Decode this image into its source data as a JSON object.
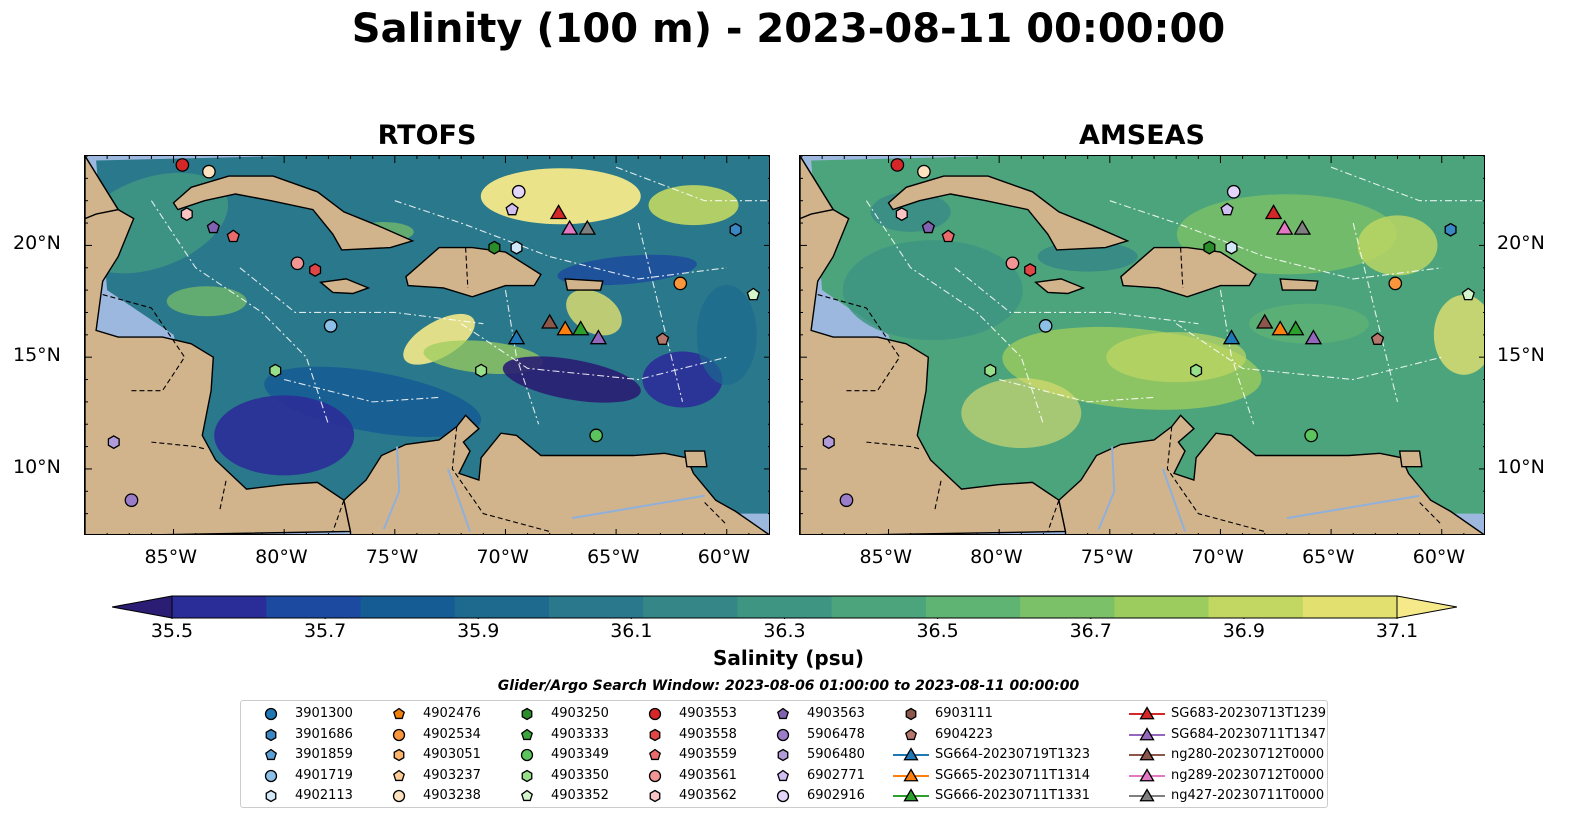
{
  "title": "Salinity (100 m) - 2023-08-11 00:00:00",
  "panels": [
    {
      "name": "RTOFS",
      "style": "rtofs"
    },
    {
      "name": "AMSEAS",
      "style": "amseas"
    }
  ],
  "map_region": {
    "lon_min": -89,
    "lon_max": -58,
    "lat_min": 7,
    "lat_max": 24
  },
  "x_ticks": [
    "85°W",
    "80°W",
    "75°W",
    "70°W",
    "65°W",
    "60°W"
  ],
  "x_tick_values": [
    -85,
    -80,
    -75,
    -70,
    -65,
    -60
  ],
  "y_ticks": [
    "20°N",
    "15°N",
    "10°N"
  ],
  "y_tick_values": [
    20,
    15,
    10
  ],
  "colorbar": {
    "label": "Salinity (psu)",
    "min": 35.4,
    "max": 37.2,
    "step": 0.1,
    "extend": "both",
    "colormap": "haline",
    "ticks": [
      "35.5",
      "35.7",
      "35.9",
      "36.1",
      "36.3",
      "36.5",
      "36.7",
      "36.9",
      "37.1"
    ],
    "tick_values": [
      35.5,
      35.7,
      35.9,
      36.1,
      36.3,
      36.5,
      36.7,
      36.9,
      37.1
    ],
    "colors": [
      "#2a1d73",
      "#2a2d98",
      "#1b4aa0",
      "#155b94",
      "#1d6a8e",
      "#2a788b",
      "#348687",
      "#3e9582",
      "#4ba47c",
      "#5fb373",
      "#7bc167",
      "#9ccc5e",
      "#c1d762",
      "#e2e06f",
      "#f5e98a"
    ]
  },
  "colors": {
    "land": "#d2b48c",
    "shallow_water": "#9db8de"
  },
  "legend": {
    "title": "Glider/Argo Search Window: 2023-08-06 01:00:00 to 2023-08-11 00:00:00",
    "columns": [
      [
        {
          "label": "3901300",
          "marker": "circle",
          "color": "#1f77b4"
        },
        {
          "label": "3901686",
          "marker": "hexagon",
          "color": "#3a87c4"
        },
        {
          "label": "3901859",
          "marker": "pentagon",
          "color": "#5b9fd4"
        },
        {
          "label": "4901719",
          "marker": "circle",
          "color": "#8cc0e6"
        },
        {
          "label": "4902113",
          "marker": "hexagon",
          "color": "#d3e8f7"
        }
      ],
      [
        {
          "label": "4902476",
          "marker": "pentagon",
          "color": "#f07f0b"
        },
        {
          "label": "4902534",
          "marker": "circle",
          "color": "#f9953a"
        },
        {
          "label": "4903051",
          "marker": "hexagon",
          "color": "#fbb46a"
        },
        {
          "label": "4903237",
          "marker": "pentagon",
          "color": "#fdcc96"
        },
        {
          "label": "4903238",
          "marker": "circle",
          "color": "#fde2c0"
        }
      ],
      [
        {
          "label": "4903250",
          "marker": "hexagon",
          "color": "#2a8c2a"
        },
        {
          "label": "4903333",
          "marker": "pentagon",
          "color": "#3ca43c"
        },
        {
          "label": "4903349",
          "marker": "circle",
          "color": "#5cc45c"
        },
        {
          "label": "4903350",
          "marker": "hexagon",
          "color": "#98df8a"
        },
        {
          "label": "4903352",
          "marker": "pentagon",
          "color": "#d4f5cc"
        }
      ],
      [
        {
          "label": "4903553",
          "marker": "circle",
          "color": "#d62728"
        },
        {
          "label": "4903558",
          "marker": "hexagon",
          "color": "#e04646"
        },
        {
          "label": "4903559",
          "marker": "pentagon",
          "color": "#ea6b6b"
        },
        {
          "label": "4903561",
          "marker": "circle",
          "color": "#f29595"
        },
        {
          "label": "4903562",
          "marker": "hexagon",
          "color": "#fac4c4"
        }
      ],
      [
        {
          "label": "4903563",
          "marker": "pentagon",
          "color": "#8062b0"
        },
        {
          "label": "5906478",
          "marker": "circle",
          "color": "#9a7cc8"
        },
        {
          "label": "5906480",
          "marker": "hexagon",
          "color": "#b19cd9"
        },
        {
          "label": "6902771",
          "marker": "pentagon",
          "color": "#d0bff0"
        },
        {
          "label": "6902916",
          "marker": "circle",
          "color": "#e3d4fa"
        }
      ],
      [
        {
          "label": "6903111",
          "marker": "hexagon",
          "color": "#8c564b"
        },
        {
          "label": "6904223",
          "marker": "pentagon",
          "color": "#b5776b"
        },
        {
          "label": "SG664-20230719T1323",
          "marker": "triangle",
          "color": "#1f77b4",
          "line": true
        },
        {
          "label": "SG665-20230711T1314",
          "marker": "triangle",
          "color": "#ff7f0e",
          "line": true
        },
        {
          "label": "SG666-20230711T1331",
          "marker": "triangle",
          "color": "#2ca02c",
          "line": true
        }
      ],
      [
        {
          "label": "SG683-20230713T1239",
          "marker": "triangle",
          "color": "#d62728",
          "line": true
        },
        {
          "label": "SG684-20230711T1347",
          "marker": "triangle",
          "color": "#9467bd",
          "line": true
        },
        {
          "label": "ng280-20230712T0000",
          "marker": "triangle",
          "color": "#8c564b",
          "line": true
        },
        {
          "label": "ng289-20230712T0000",
          "marker": "triangle",
          "color": "#e377c2",
          "line": true
        },
        {
          "label": "ng427-20230711T0000",
          "marker": "triangle",
          "color": "#7f7f7f",
          "line": true
        }
      ]
    ]
  },
  "observations": [
    {
      "id": "4903553",
      "lon": -84.6,
      "lat": 23.6
    },
    {
      "id": "4903238",
      "lon": -83.4,
      "lat": 23.3
    },
    {
      "id": "4903562",
      "lon": -84.4,
      "lat": 21.4
    },
    {
      "id": "4903563",
      "lon": -83.2,
      "lat": 20.8
    },
    {
      "id": "4903559",
      "lon": -82.3,
      "lat": 20.4
    },
    {
      "id": "4903561",
      "lon": -79.4,
      "lat": 19.2
    },
    {
      "id": "4903558",
      "lon": -78.6,
      "lat": 18.9
    },
    {
      "id": "4901719",
      "lon": -77.9,
      "lat": 16.4
    },
    {
      "id": "4903350",
      "lon": -80.4,
      "lat": 14.4
    },
    {
      "id": "5906480",
      "lon": -87.7,
      "lat": 11.2
    },
    {
      "id": "5906478",
      "lon": -86.9,
      "lat": 8.6
    },
    {
      "id": "6902916",
      "lon": -69.4,
      "lat": 22.4
    },
    {
      "id": "6902771",
      "lon": -69.7,
      "lat": 21.6
    },
    {
      "id": "4903250",
      "lon": -70.5,
      "lat": 19.9
    },
    {
      "id": "4902113",
      "lon": -69.5,
      "lat": 19.9
    },
    {
      "id": "4903350",
      "lon": -71.1,
      "lat": 14.4
    },
    {
      "id": "4903349",
      "lon": -65.9,
      "lat": 11.5
    },
    {
      "id": "3901686",
      "lon": -59.6,
      "lat": 20.7
    },
    {
      "id": "4902534",
      "lon": -62.1,
      "lat": 18.3
    },
    {
      "id": "4903352",
      "lon": -58.8,
      "lat": 17.8
    },
    {
      "id": "6904223",
      "lon": -62.9,
      "lat": 15.8
    },
    {
      "id": "SG683-20230713T1239",
      "lon": -67.6,
      "lat": 21.4
    },
    {
      "id": "ng289-20230712T0000",
      "lon": -67.1,
      "lat": 20.7
    },
    {
      "id": "ng427-20230711T0000",
      "lon": -66.3,
      "lat": 20.7
    },
    {
      "id": "SG664-20230719T1323",
      "lon": -69.5,
      "lat": 15.8
    },
    {
      "id": "ng280-20230712T0000",
      "lon": -68.0,
      "lat": 16.5
    },
    {
      "id": "SG665-20230711T1314",
      "lon": -67.3,
      "lat": 16.2
    },
    {
      "id": "SG666-20230711T1331",
      "lon": -66.6,
      "lat": 16.2
    },
    {
      "id": "SG684-20230711T1347",
      "lon": -65.8,
      "lat": 15.8
    }
  ]
}
